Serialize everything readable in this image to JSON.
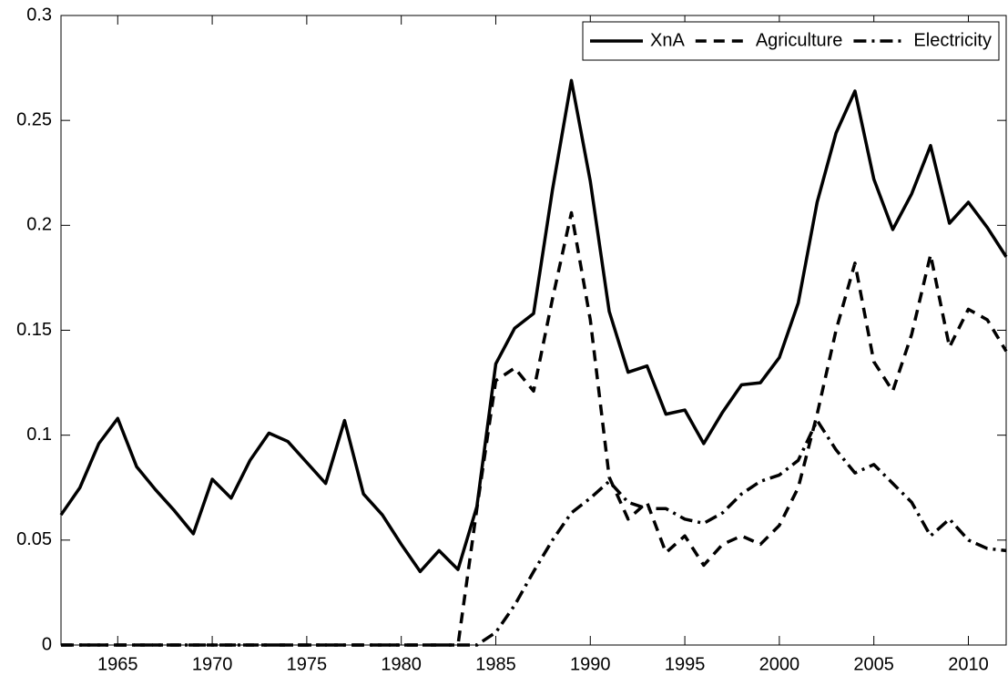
{
  "chart_data": {
    "type": "line",
    "x": [
      1962,
      1963,
      1964,
      1965,
      1966,
      1967,
      1968,
      1969,
      1970,
      1971,
      1972,
      1973,
      1974,
      1975,
      1976,
      1977,
      1978,
      1979,
      1980,
      1981,
      1982,
      1983,
      1984,
      1985,
      1986,
      1987,
      1988,
      1989,
      1990,
      1991,
      1992,
      1993,
      1994,
      1995,
      1996,
      1997,
      1998,
      1999,
      2000,
      2001,
      2002,
      2003,
      2004,
      2005,
      2006,
      2007,
      2008,
      2009,
      2010,
      2011,
      2012
    ],
    "series": [
      {
        "name": "XnA",
        "color": "#000000",
        "dash": "solid",
        "values": [
          0.062,
          0.075,
          0.096,
          0.108,
          0.085,
          0.074,
          0.064,
          0.053,
          0.079,
          0.07,
          0.088,
          0.101,
          0.097,
          0.087,
          0.077,
          0.107,
          0.072,
          0.062,
          0.048,
          0.035,
          0.045,
          0.036,
          0.066,
          0.134,
          0.151,
          0.158,
          0.217,
          0.269,
          0.221,
          0.159,
          0.13,
          0.133,
          0.11,
          0.112,
          0.096,
          0.111,
          0.124,
          0.125,
          0.137,
          0.163,
          0.211,
          0.244,
          0.264,
          0.222,
          0.198,
          0.215,
          0.238,
          0.201,
          0.211,
          0.199,
          0.185
        ]
      },
      {
        "name": "Agriculture",
        "color": "#000000",
        "dash": "dashed",
        "values": [
          0,
          0,
          0,
          0,
          0,
          0,
          0,
          0,
          0,
          0,
          0,
          0,
          0,
          0,
          0,
          0,
          0,
          0,
          0,
          0,
          0,
          0,
          0.065,
          0.126,
          0.132,
          0.121,
          0.165,
          0.206,
          0.155,
          0.08,
          0.06,
          0.068,
          0.044,
          0.052,
          0.038,
          0.048,
          0.052,
          0.048,
          0.057,
          0.075,
          0.11,
          0.15,
          0.182,
          0.135,
          0.121,
          0.148,
          0.186,
          0.142,
          0.16,
          0.155,
          0.14
        ]
      },
      {
        "name": "Electricity",
        "color": "#000000",
        "dash": "dashdot",
        "values": [
          0,
          0,
          0,
          0,
          0,
          0,
          0,
          0,
          0,
          0,
          0,
          0,
          0,
          0,
          0,
          0,
          0,
          0,
          0,
          0,
          0,
          0,
          0,
          0.006,
          0.019,
          0.035,
          0.05,
          0.063,
          0.07,
          0.078,
          0.068,
          0.065,
          0.065,
          0.06,
          0.058,
          0.063,
          0.072,
          0.078,
          0.081,
          0.088,
          0.107,
          0.093,
          0.082,
          0.086,
          0.077,
          0.068,
          0.052,
          0.06,
          0.05,
          0.046,
          0.045
        ]
      }
    ],
    "xlim": [
      1962,
      2012
    ],
    "xticks": [
      1965,
      1970,
      1975,
      1980,
      1985,
      1990,
      1995,
      2000,
      2005,
      2010
    ],
    "ylim": [
      0,
      0.3
    ],
    "yticks": [
      0,
      0.05,
      0.1,
      0.15,
      0.2,
      0.25,
      0.3
    ],
    "grid": false,
    "legend": "top-right"
  }
}
